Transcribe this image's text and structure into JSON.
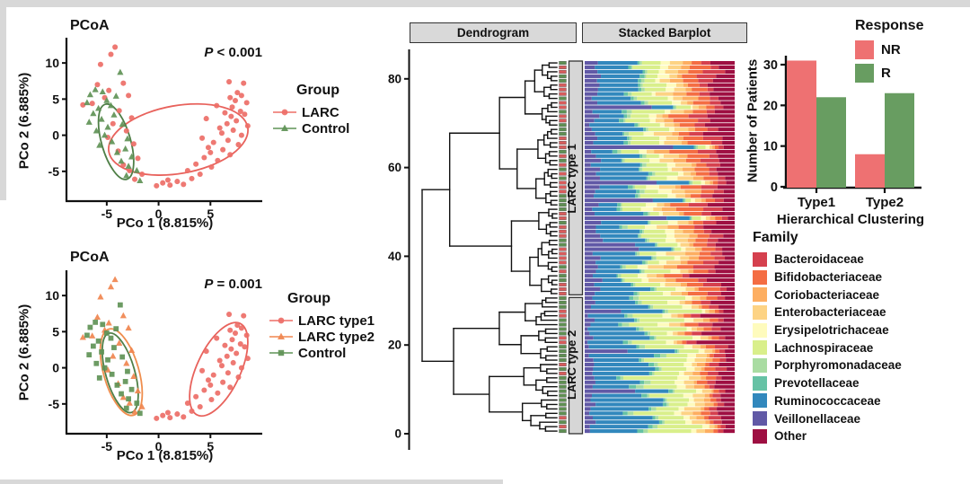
{
  "figure_edges": {
    "note": "light gray screenshot edge bands",
    "color": "#d8d8d8"
  },
  "point_clusters": {
    "right_larc": [
      [
        6.8,
        7.4
      ],
      [
        8.2,
        7.2
      ],
      [
        7.6,
        5.9
      ],
      [
        8.0,
        5.5
      ],
      [
        6.9,
        5.2
      ],
      [
        7.4,
        4.8
      ],
      [
        8.5,
        4.5
      ],
      [
        5.6,
        4.1
      ],
      [
        7.1,
        3.9
      ],
      [
        7.9,
        3.3
      ],
      [
        6.4,
        3.1
      ],
      [
        8.3,
        2.9
      ],
      [
        7.0,
        2.6
      ],
      [
        4.6,
        2.3
      ],
      [
        7.5,
        2.0
      ],
      [
        6.6,
        1.6
      ],
      [
        8.6,
        1.3
      ],
      [
        5.9,
        1.0
      ],
      [
        7.2,
        0.7
      ],
      [
        6.1,
        0.3
      ],
      [
        8.0,
        0.0
      ],
      [
        4.2,
        -0.4
      ],
      [
        6.7,
        -0.7
      ],
      [
        5.3,
        -1.0
      ],
      [
        7.7,
        -1.3
      ],
      [
        4.8,
        -1.7
      ],
      [
        6.2,
        -2.0
      ],
      [
        5.0,
        -2.4
      ],
      [
        6.9,
        -2.7
      ],
      [
        4.4,
        -3.1
      ],
      [
        5.7,
        -3.5
      ],
      [
        3.6,
        -4.0
      ],
      [
        5.1,
        -4.4
      ],
      [
        2.8,
        -4.9
      ],
      [
        4.0,
        -5.4
      ],
      [
        3.2,
        -6.0
      ],
      [
        1.8,
        -6.4
      ],
      [
        2.4,
        -6.8
      ],
      [
        1.1,
        -6.9
      ],
      [
        0.4,
        -6.6
      ],
      [
        -0.2,
        -7.0
      ],
      [
        0.9,
        -6.2
      ]
    ],
    "left_larc": [
      [
        -4.2,
        12.2
      ],
      [
        -4.6,
        11.2
      ],
      [
        -5.6,
        9.8
      ],
      [
        -3.4,
        7.2
      ],
      [
        -5.9,
        7.0
      ],
      [
        -4.8,
        6.2
      ],
      [
        -2.9,
        5.5
      ],
      [
        -5.2,
        5.2
      ],
      [
        -6.4,
        4.4
      ],
      [
        -7.3,
        4.2
      ],
      [
        -3.8,
        3.4
      ],
      [
        -2.6,
        2.4
      ],
      [
        -4.4,
        1.6
      ],
      [
        -3.1,
        0.6
      ],
      [
        -4.9,
        -0.3
      ],
      [
        -2.4,
        -1.2
      ],
      [
        -3.9,
        -2.2
      ],
      [
        -2.0,
        -3.2
      ],
      [
        -3.4,
        -4.1
      ],
      [
        -2.8,
        -4.9
      ],
      [
        -1.6,
        -5.4
      ],
      [
        -2.3,
        -6.1
      ]
    ],
    "control": [
      [
        -3.7,
        8.7
      ],
      [
        -6.1,
        6.3
      ],
      [
        -5.4,
        6.0
      ],
      [
        -6.6,
        5.6
      ],
      [
        -4.1,
        5.4
      ],
      [
        -5.0,
        4.8
      ],
      [
        -6.9,
        4.5
      ],
      [
        -4.6,
        4.1
      ],
      [
        -5.8,
        3.7
      ],
      [
        -6.3,
        3.0
      ],
      [
        -4.3,
        2.8
      ],
      [
        -5.5,
        2.2
      ],
      [
        -6.7,
        1.8
      ],
      [
        -3.5,
        1.5
      ],
      [
        -4.9,
        1.1
      ],
      [
        -6.0,
        0.6
      ],
      [
        -5.2,
        0.0
      ],
      [
        -3.0,
        -0.5
      ],
      [
        -4.5,
        -0.9
      ],
      [
        -5.7,
        -1.4
      ],
      [
        -3.2,
        -1.9
      ],
      [
        -4.0,
        -2.4
      ],
      [
        -2.6,
        -3.0
      ],
      [
        -3.6,
        -3.6
      ],
      [
        -2.9,
        -4.3
      ],
      [
        -2.1,
        -4.9
      ],
      [
        -3.1,
        -5.6
      ],
      [
        -1.8,
        -6.3
      ]
    ]
  },
  "group_legend_top": {
    "title": "Group",
    "items": [
      {
        "label": "LARC",
        "marker": "circle",
        "color": "#ED6E67"
      },
      {
        "label": "Control",
        "marker": "triangle",
        "color": "#5F9356"
      }
    ]
  },
  "group_legend_bottom": {
    "title": "Group",
    "items": [
      {
        "label": "LARC type1",
        "marker": "circle",
        "color": "#ED6E67"
      },
      {
        "label": "LARC type2",
        "marker": "triangle",
        "color": "#F0854F"
      },
      {
        "label": "Control",
        "marker": "square",
        "color": "#5F9356"
      }
    ]
  },
  "family_legend": {
    "title": "Family",
    "items": [
      {
        "label": "Bacteroidaceae",
        "color": "#D5404E"
      },
      {
        "label": "Bifidobacteriaceae",
        "color": "#F46D43"
      },
      {
        "label": "Coriobacteriaceae",
        "color": "#FDAE61"
      },
      {
        "label": "Enterobacteriaceae",
        "color": "#FDD384"
      },
      {
        "label": "Erysipelotrichaceae",
        "color": "#FEFBBD"
      },
      {
        "label": "Lachnospiraceae",
        "color": "#D9EF8B"
      },
      {
        "label": "Porphyromonadaceae",
        "color": "#A9DCA2"
      },
      {
        "label": "Prevotellaceae",
        "color": "#66C2A5"
      },
      {
        "label": "Ruminococcaceae",
        "color": "#3288BD"
      },
      {
        "label": "Veillonellaceae",
        "color": "#6159A6"
      },
      {
        "label": "Other",
        "color": "#9E0F42"
      }
    ]
  },
  "chart_data": [
    {
      "id": "pcoa_top",
      "type": "scatter",
      "title": "PCoA",
      "p_prefix": "P",
      "p_value": " < 0.001",
      "xlabel": "PCo 1 (8.815%)",
      "ylabel": "PCo 2 (6.885%)",
      "xlim": [
        -8.8,
        10
      ],
      "ylim": [
        -9,
        13
      ],
      "xticks": [
        -5,
        0,
        5
      ],
      "yticks": [
        -5,
        0,
        5,
        10
      ],
      "grid": false,
      "series": [
        {
          "name": "LARC",
          "marker": "circle",
          "color": "#ED6E67",
          "clusters": [
            "left_larc",
            "right_larc"
          ]
        },
        {
          "name": "Control",
          "marker": "triangle",
          "color": "#5F9356",
          "clusters": [
            "control"
          ]
        }
      ],
      "ellipses": [
        {
          "cx": 1.9,
          "cy": -0.6,
          "rx": 6.8,
          "ry": 4.7,
          "rot": -10,
          "color": "#E8625C"
        },
        {
          "cx": -4.1,
          "cy": -0.9,
          "rx": 1.4,
          "ry": 5.4,
          "rot": -16,
          "color": "#4F7F47"
        }
      ]
    },
    {
      "id": "pcoa_bottom",
      "type": "scatter",
      "title": "PCoA",
      "p_prefix": "P",
      "p_value": " = 0.001",
      "xlabel": "PCo 1 (8.815%)",
      "ylabel": "PCo 2 (6.885%)",
      "xlim": [
        -8.8,
        10
      ],
      "ylim": [
        -9,
        13
      ],
      "xticks": [
        -5,
        0,
        5
      ],
      "yticks": [
        -5,
        0,
        5,
        10
      ],
      "grid": false,
      "series": [
        {
          "name": "LARC type1",
          "marker": "circle",
          "color": "#ED6E67",
          "clusters": [
            "right_larc"
          ]
        },
        {
          "name": "LARC type2",
          "marker": "triangle",
          "color": "#F0854F",
          "clusters": [
            "left_larc"
          ]
        },
        {
          "name": "Control",
          "marker": "square",
          "color": "#5F9356",
          "clusters": [
            "control"
          ]
        }
      ],
      "ellipses": [
        {
          "cx": 5.8,
          "cy": -0.2,
          "rx": 2.1,
          "ry": 7.0,
          "rot": 25,
          "color": "#E8625C"
        },
        {
          "cx": -3.6,
          "cy": -0.6,
          "rx": 1.7,
          "ry": 6.2,
          "rot": -16,
          "color": "#EF8E4E"
        },
        {
          "cx": -3.7,
          "cy": -0.7,
          "rx": 1.4,
          "ry": 5.7,
          "rot": -16,
          "color": "#4F7F47"
        }
      ]
    },
    {
      "id": "dendro_stacked",
      "type": "bar",
      "subtype": "dendrogram-with-100pct-stacked-rows",
      "panel_headers": [
        "Dendrogram",
        "Stacked Barplot"
      ],
      "axis_ticks": [
        0,
        20,
        40,
        60,
        80
      ],
      "n_leaves": 84,
      "stack_order": [
        "Veillonellaceae",
        "Ruminococcaceae",
        "Prevotellaceae",
        "Porphyromonadaceae",
        "Lachnospiraceae",
        "Erysipelotrichaceae",
        "Enterobacteriaceae",
        "Coriobacteriaceae",
        "Bifidobacteriaceae",
        "Bacteroidaceae",
        "Other"
      ],
      "leaf_marker_colors": {
        "NR": "#D85C5C",
        "R": "#5F8F52"
      },
      "clusters": [
        {
          "label": "LARC type 1",
          "n": 53,
          "response_counts": {
            "NR": 31,
            "R": 22
          },
          "mean_profile_pct": [
            8,
            24,
            2,
            2,
            13,
            5,
            8,
            6,
            11,
            9,
            12
          ]
        },
        {
          "label": "LARC type 2",
          "n": 31,
          "response_counts": {
            "NR": 8,
            "R": 23
          },
          "mean_profile_pct": [
            5,
            31,
            3,
            3,
            23,
            5,
            6,
            4,
            5,
            6,
            9
          ]
        }
      ],
      "seed": 421
    },
    {
      "id": "patients",
      "type": "bar",
      "categories": [
        "Type1",
        "Type2"
      ],
      "series": [
        {
          "name": "NR",
          "color": "#EE7172",
          "values": [
            31,
            8
          ]
        },
        {
          "name": "R",
          "color": "#689D61",
          "values": [
            22,
            23
          ]
        }
      ],
      "legend_title": "Response",
      "ylabel": "Number of Patients",
      "xlabel": "Hierarchical Clustering",
      "yticks": [
        0,
        10,
        20,
        30
      ],
      "ylim": [
        0,
        33
      ],
      "grid": false,
      "legend_position": "top-right"
    }
  ]
}
